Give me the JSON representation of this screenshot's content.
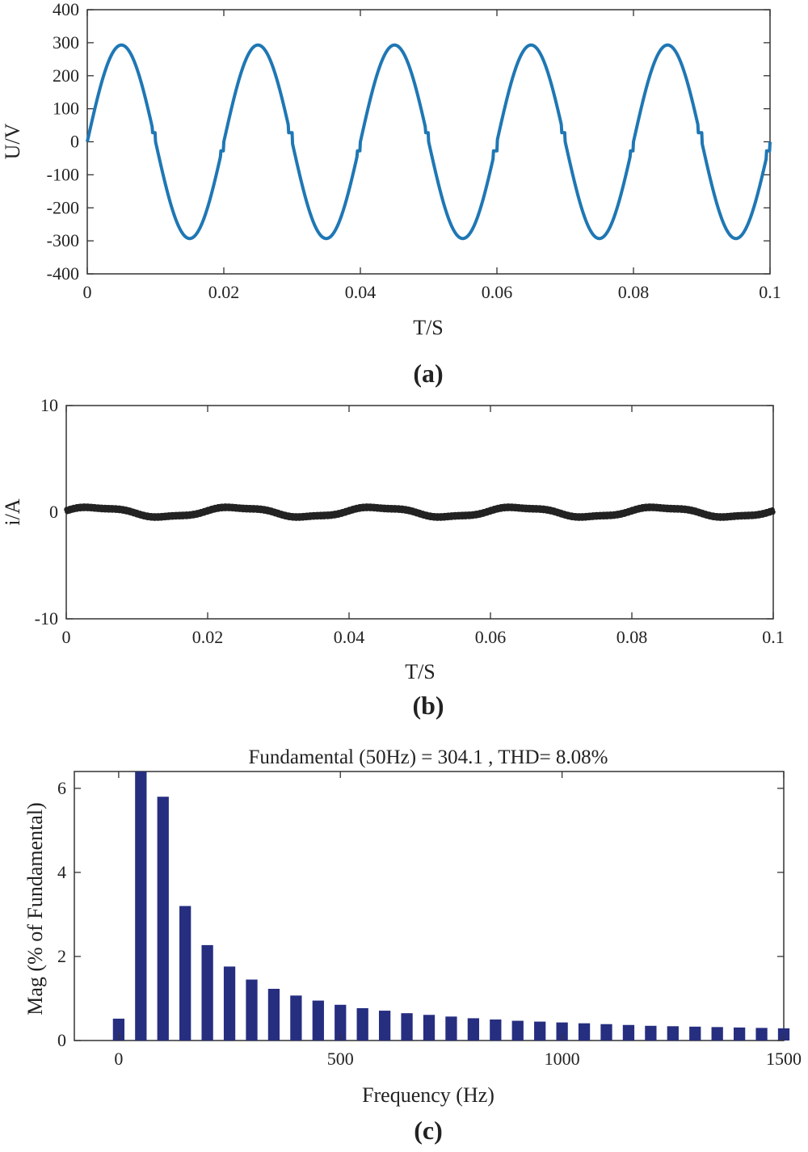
{
  "chart_data": [
    {
      "id": "a",
      "type": "line",
      "caption": "(a)",
      "xlabel": "T/S",
      "ylabel": "U/V",
      "xlim": [
        0,
        0.1
      ],
      "ylim": [
        -400,
        400
      ],
      "xticks": [
        0,
        0.02,
        0.04,
        0.06,
        0.08,
        0.1
      ],
      "xtick_labels": [
        "0",
        "0.02",
        "0.04",
        "0.06",
        "0.08",
        "0.1"
      ],
      "yticks": [
        400,
        300,
        200,
        100,
        0,
        -100,
        -200,
        -300,
        -400
      ],
      "ytick_labels": [
        "400",
        "300",
        "200",
        "100",
        "0",
        "-100",
        "-200",
        "-300",
        "-400"
      ],
      "series": [
        {
          "name": "U",
          "color": "#1f77b4",
          "frequency_hz": 50,
          "peak": 293,
          "dead_time_s": 0.0005,
          "description": "sinusoid with small flat shoulder near each zero crossing"
        }
      ]
    },
    {
      "id": "b",
      "type": "line",
      "caption": "(b)",
      "xlabel": "T/S",
      "ylabel": "i/A",
      "xlim": [
        0,
        0.1
      ],
      "ylim": [
        -10,
        10
      ],
      "xticks": [
        0,
        0.02,
        0.04,
        0.06,
        0.08,
        0.1
      ],
      "xtick_labels": [
        "0",
        "0.02",
        "0.04",
        "0.06",
        "0.08",
        "0.1"
      ],
      "yticks": [
        10,
        0,
        -10
      ],
      "ytick_labels": [
        "10",
        "0",
        "-10"
      ],
      "series": [
        {
          "name": "i",
          "color": "#222222",
          "frequency_hz": 50,
          "amplitude": 0.45,
          "ripple": 0.28,
          "description": "small sinusoidal current with high-frequency ripple"
        }
      ]
    },
    {
      "id": "c",
      "type": "bar",
      "caption": "(c)",
      "title": "Fundamental (50Hz) = 304.1 , THD= 8.08%",
      "xlabel": "Frequency (Hz)",
      "ylabel": "Mag (% of Fundamental)",
      "xlim": [
        -100,
        1500
      ],
      "ylim": [
        0,
        6.4
      ],
      "xticks": [
        0,
        500,
        1000,
        1500
      ],
      "xtick_labels": [
        "0",
        "500",
        "1000",
        "1500"
      ],
      "yticks": [
        0,
        2,
        4,
        6
      ],
      "ytick_labels": [
        "0",
        "2",
        "4",
        "6"
      ],
      "bar_color": "#262e80",
      "bar_width_hz": 26,
      "x": [
        0,
        50,
        100,
        150,
        200,
        250,
        300,
        350,
        400,
        450,
        500,
        550,
        600,
        650,
        700,
        750,
        800,
        850,
        900,
        950,
        1000,
        1050,
        1100,
        1150,
        1200,
        1250,
        1300,
        1350,
        1400,
        1450,
        1500
      ],
      "values": [
        0.52,
        6.4,
        5.8,
        3.2,
        2.27,
        1.76,
        1.45,
        1.23,
        1.07,
        0.95,
        0.85,
        0.77,
        0.71,
        0.65,
        0.61,
        0.57,
        0.53,
        0.5,
        0.47,
        0.45,
        0.43,
        0.41,
        0.39,
        0.37,
        0.35,
        0.34,
        0.33,
        0.32,
        0.31,
        0.3,
        0.29
      ]
    }
  ]
}
